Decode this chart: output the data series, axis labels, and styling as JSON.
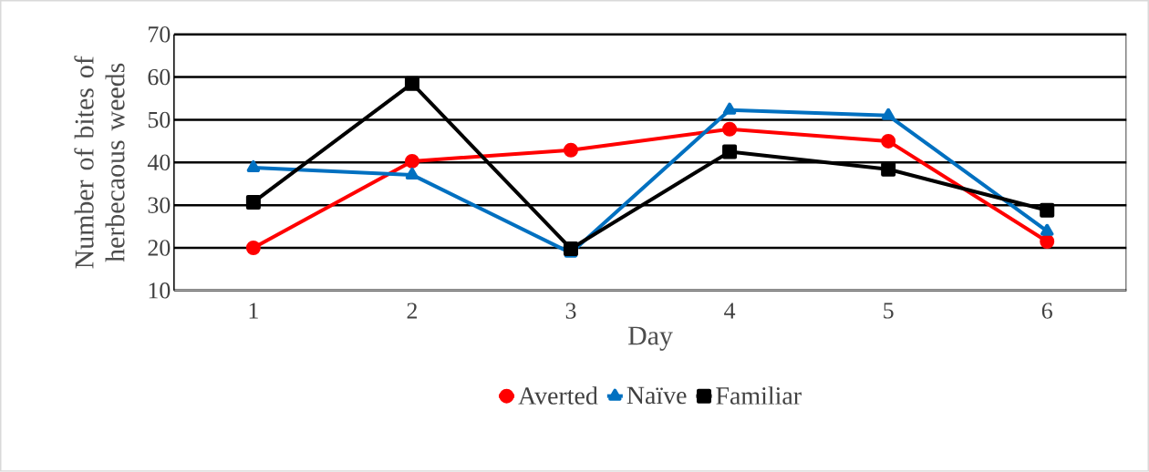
{
  "chart_data": {
    "type": "line",
    "xlabel": "Day",
    "ylabel": "Number of bites of herbecaous weeds",
    "categories": [
      "1",
      "2",
      "3",
      "4",
      "5",
      "6"
    ],
    "series": [
      {
        "name": "Averted",
        "color": "#ff0000",
        "marker": "circle",
        "values": [
          20.0,
          40.3,
          42.9,
          47.8,
          45.0,
          21.5
        ]
      },
      {
        "name": "Naïve",
        "color": "#0070c0",
        "marker": "triangle",
        "values": [
          38.8,
          37.1,
          18.8,
          52.3,
          51.0,
          23.9
        ]
      },
      {
        "name": "Familiar",
        "color": "#000000",
        "marker": "square",
        "values": [
          30.7,
          58.5,
          19.8,
          42.5,
          38.4,
          28.8
        ]
      }
    ],
    "ylim": [
      10,
      70
    ],
    "yticks": [
      10,
      20,
      30,
      40,
      50,
      60,
      70
    ],
    "grid": "y",
    "legend": "bottom",
    "line_style": "solid"
  }
}
